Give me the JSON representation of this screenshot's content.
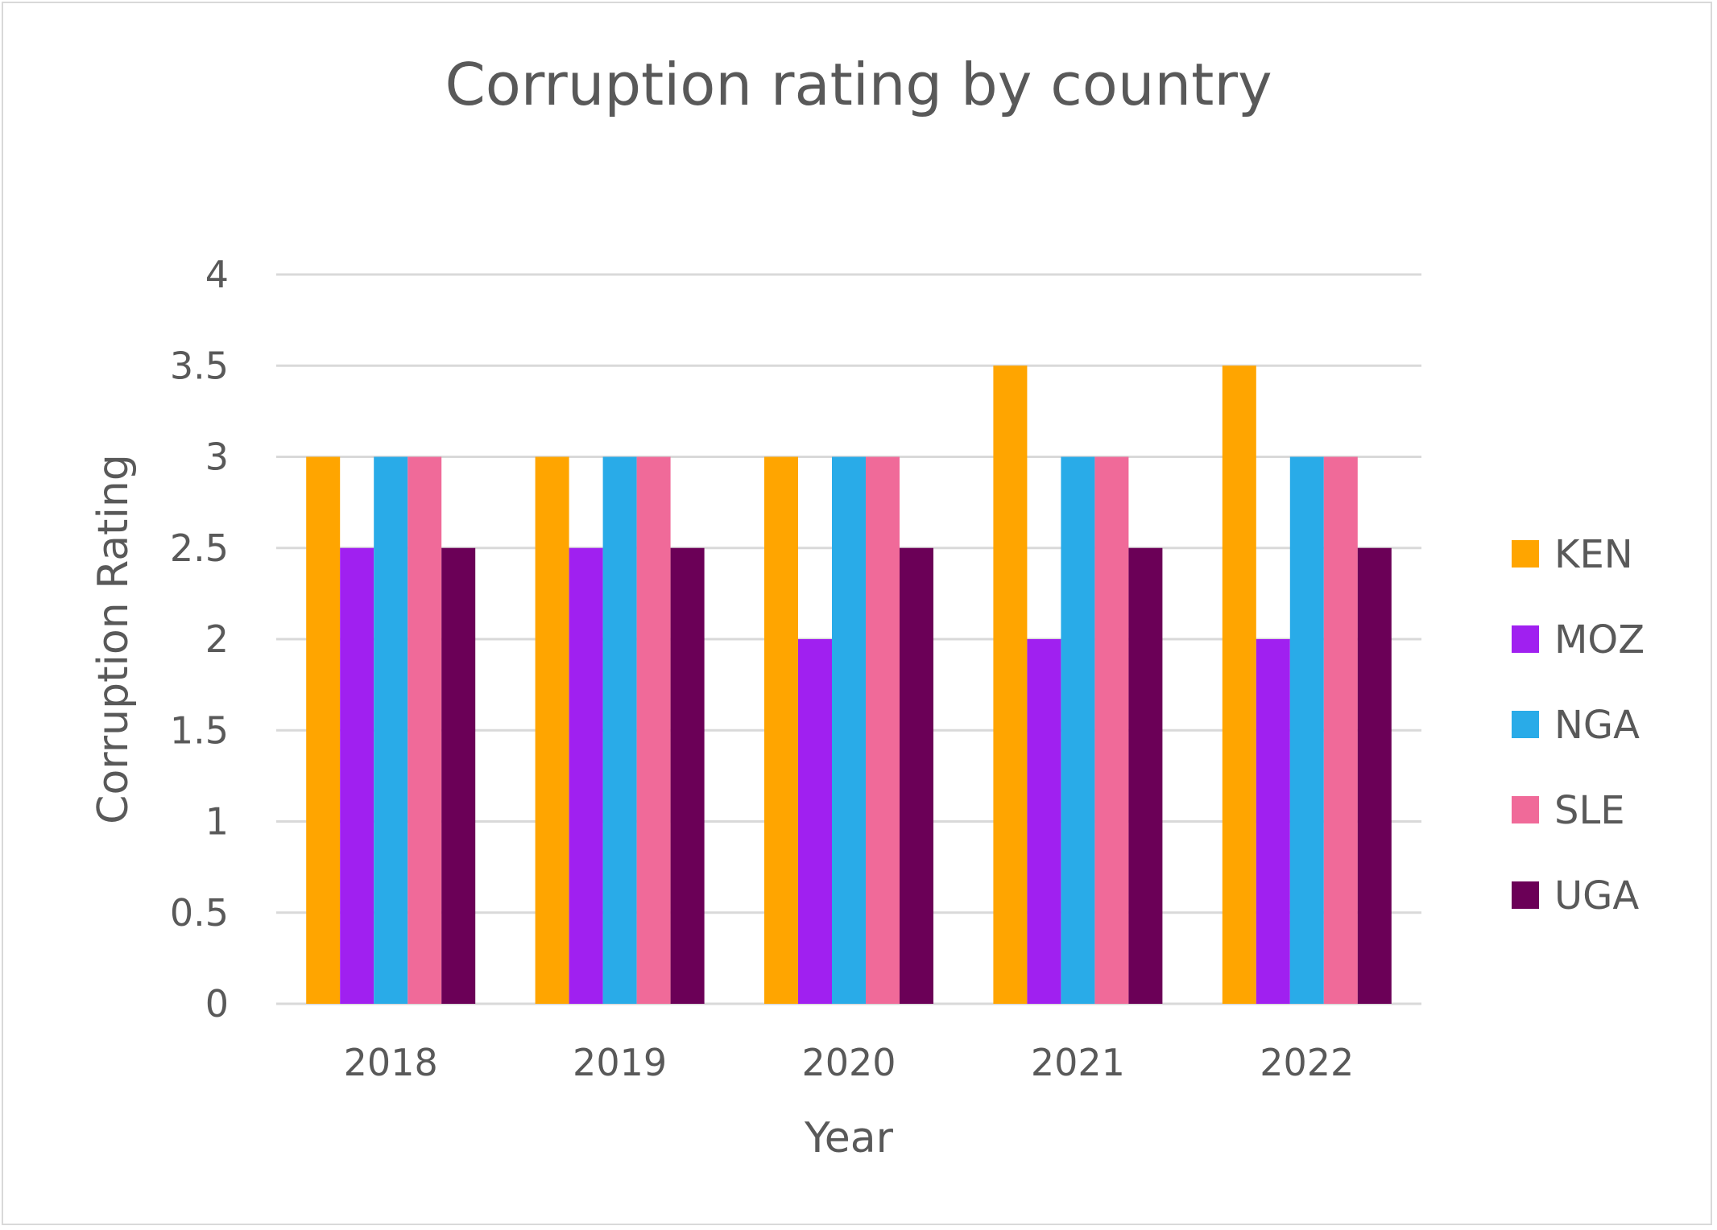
{
  "chart_data": {
    "type": "bar",
    "title": "Corruption rating by country",
    "xlabel": "Year",
    "ylabel": "Corruption Rating",
    "categories": [
      "2018",
      "2019",
      "2020",
      "2021",
      "2022"
    ],
    "ylim": [
      0,
      4
    ],
    "yticks": [
      "0",
      "0.5",
      "1",
      "1.5",
      "2",
      "2.5",
      "3",
      "3.5",
      "4"
    ],
    "grid": true,
    "legend_position": "right",
    "series": [
      {
        "name": "KEN",
        "color": "#FFA500",
        "values": [
          3,
          3,
          3,
          3.5,
          3.5
        ]
      },
      {
        "name": "MOZ",
        "color": "#A020F0",
        "values": [
          2.5,
          2.5,
          2,
          2,
          2
        ]
      },
      {
        "name": "NGA",
        "color": "#29ABE8",
        "values": [
          3,
          3,
          3,
          3,
          3
        ]
      },
      {
        "name": "SLE",
        "color": "#F06A99",
        "values": [
          3,
          3,
          3,
          3,
          3
        ]
      },
      {
        "name": "UGA",
        "color": "#6B0057",
        "values": [
          2.5,
          2.5,
          2.5,
          2.5,
          2.5
        ]
      }
    ]
  }
}
